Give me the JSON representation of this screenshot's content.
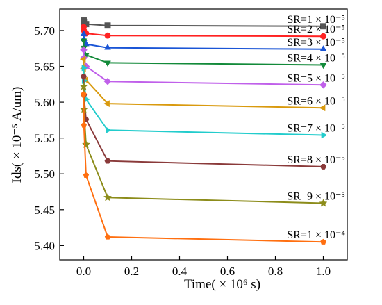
{
  "chart_data": {
    "type": "line",
    "xlabel": "Time( × 10⁶ s)",
    "ylabel": "Ids( × 10⁻⁵ A/um)",
    "xlim": [
      -0.1,
      1.1
    ],
    "ylim": [
      5.38,
      5.73
    ],
    "xticks": [
      "0.0",
      "0.2",
      "0.4",
      "0.6",
      "0.8",
      "1.0"
    ],
    "yticks": [
      "5.40",
      "5.45",
      "5.50",
      "5.55",
      "5.60",
      "5.65",
      "5.70"
    ],
    "x": [
      0,
      0.001,
      0.01,
      0.1,
      1.0
    ],
    "series": [
      {
        "name": "SR=1 × 10⁻⁵",
        "color": "#555555",
        "marker": "square",
        "values": [
          5.714,
          5.712,
          5.709,
          5.707,
          5.706
        ]
      },
      {
        "name": "SR=2 × 10⁻⁵",
        "color": "#ff2222",
        "marker": "circle",
        "values": [
          5.705,
          5.7,
          5.696,
          5.693,
          5.692
        ]
      },
      {
        "name": "SR=3 × 10⁻⁵",
        "color": "#1a55d6",
        "marker": "triangle",
        "values": [
          5.695,
          5.688,
          5.681,
          5.676,
          5.674
        ]
      },
      {
        "name": "SR=4 × 10⁻⁵",
        "color": "#138a3a",
        "marker": "tri-down",
        "values": [
          5.686,
          5.676,
          5.666,
          5.655,
          5.652
        ]
      },
      {
        "name": "SR=5 × 10⁻⁵",
        "color": "#c060ea",
        "marker": "diamond",
        "values": [
          5.673,
          5.662,
          5.65,
          5.629,
          5.624
        ]
      },
      {
        "name": "SR=6 × 10⁻⁵",
        "color": "#d99a0e",
        "marker": "tri-left",
        "values": [
          5.66,
          5.647,
          5.631,
          5.598,
          5.592
        ]
      },
      {
        "name": "SR=7 × 10⁻⁵",
        "color": "#22cccc",
        "marker": "tri-right",
        "values": [
          5.648,
          5.63,
          5.604,
          5.561,
          5.554
        ]
      },
      {
        "name": "SR=8 × 10⁻⁵",
        "color": "#8a3a3a",
        "marker": "hexagon",
        "values": [
          5.636,
          5.61,
          5.576,
          5.518,
          5.51
        ]
      },
      {
        "name": "SR=9 × 10⁻⁵",
        "color": "#8c8c1a",
        "marker": "star",
        "values": [
          5.622,
          5.59,
          5.541,
          5.467,
          5.459
        ]
      },
      {
        "name": "SR=1 × 10⁻⁴",
        "color": "#ff6f10",
        "marker": "pentagon",
        "values": [
          5.611,
          5.568,
          5.498,
          5.412,
          5.405
        ]
      }
    ]
  }
}
